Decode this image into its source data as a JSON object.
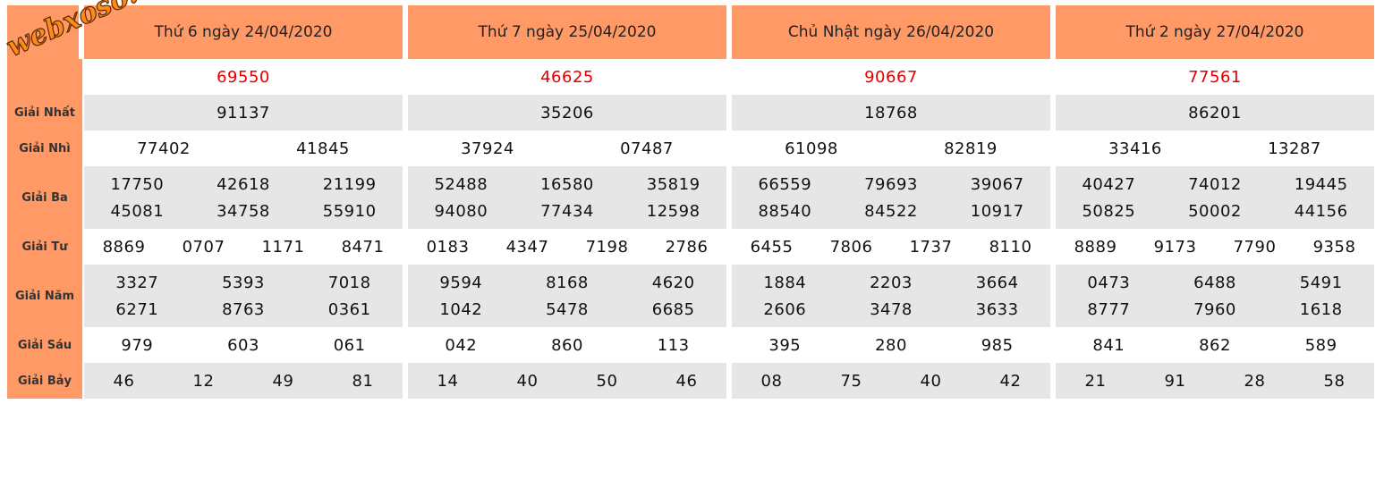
{
  "watermark": "webxoso.net",
  "days": [
    "Thứ 6 ngày 24/04/2020",
    "Thứ 7 ngày 25/04/2020",
    "Chủ Nhật ngày 26/04/2020",
    "Thứ 2 ngày 27/04/2020"
  ],
  "prizes": [
    {
      "special": true,
      "results": [
        [
          "69550"
        ],
        [
          "46625"
        ],
        [
          "90667"
        ],
        [
          "77561"
        ]
      ]
    },
    {
      "label": "Giải Nhất",
      "results": [
        [
          "91137"
        ],
        [
          "35206"
        ],
        [
          "18768"
        ],
        [
          "86201"
        ]
      ]
    },
    {
      "label": "Giải Nhì",
      "results": [
        [
          "77402",
          "41845"
        ],
        [
          "37924",
          "07487"
        ],
        [
          "61098",
          "82819"
        ],
        [
          "33416",
          "13287"
        ]
      ]
    },
    {
      "label": "Giải Ba",
      "results": [
        [
          "17750",
          "42618",
          "21199",
          "45081",
          "34758",
          "55910"
        ],
        [
          "52488",
          "16580",
          "35819",
          "94080",
          "77434",
          "12598"
        ],
        [
          "66559",
          "79693",
          "39067",
          "88540",
          "84522",
          "10917"
        ],
        [
          "40427",
          "74012",
          "19445",
          "50825",
          "50002",
          "44156"
        ]
      ]
    },
    {
      "label": "Giải Tư",
      "results": [
        [
          "8869",
          "0707",
          "1171",
          "8471"
        ],
        [
          "0183",
          "4347",
          "7198",
          "2786"
        ],
        [
          "6455",
          "7806",
          "1737",
          "8110"
        ],
        [
          "8889",
          "9173",
          "7790",
          "9358"
        ]
      ]
    },
    {
      "label": "Giải Năm",
      "results": [
        [
          "3327",
          "5393",
          "7018",
          "6271",
          "8763",
          "0361"
        ],
        [
          "9594",
          "8168",
          "4620",
          "1042",
          "5478",
          "6685"
        ],
        [
          "1884",
          "2203",
          "3664",
          "2606",
          "3478",
          "3633"
        ],
        [
          "0473",
          "6488",
          "5491",
          "8777",
          "7960",
          "1618"
        ]
      ]
    },
    {
      "label": "Giải Sáu",
      "results": [
        [
          "979",
          "603",
          "061"
        ],
        [
          "042",
          "860",
          "113"
        ],
        [
          "395",
          "280",
          "985"
        ],
        [
          "841",
          "862",
          "589"
        ]
      ]
    },
    {
      "label": "Giải Bảy",
      "results": [
        [
          "46",
          "12",
          "49",
          "81"
        ],
        [
          "14",
          "40",
          "50",
          "46"
        ],
        [
          "08",
          "75",
          "40",
          "42"
        ],
        [
          "21",
          "91",
          "28",
          "58"
        ]
      ]
    }
  ]
}
